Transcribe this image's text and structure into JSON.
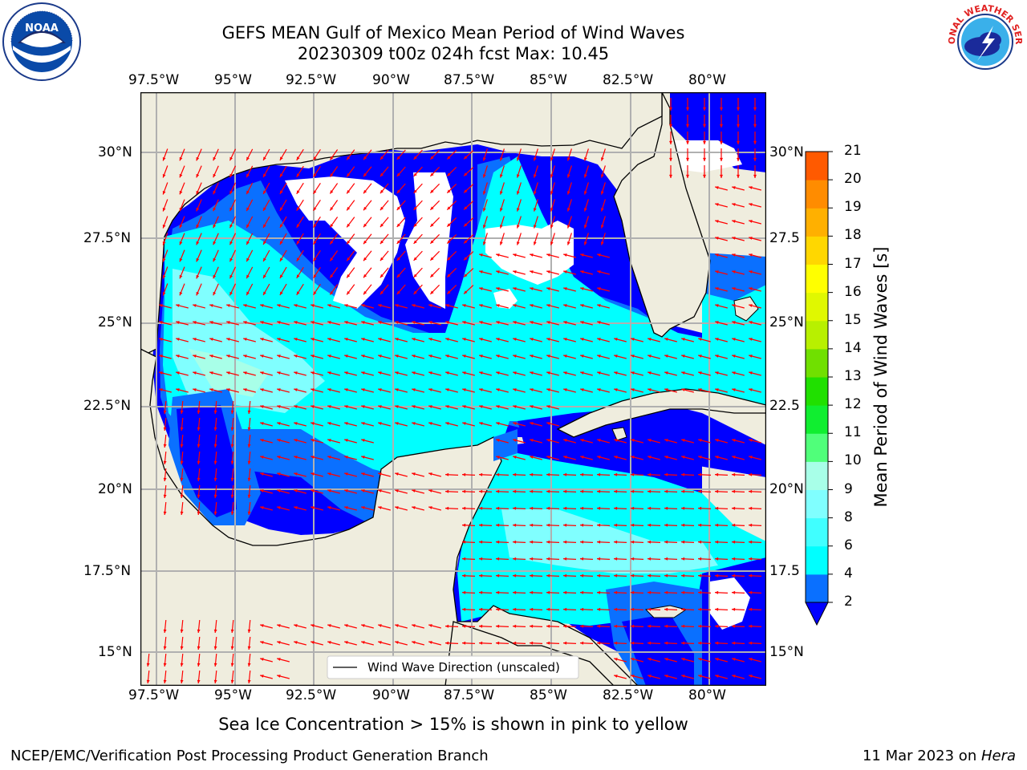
{
  "header": {
    "title_line1": "GEFS MEAN Gulf of Mexico Mean Period of Wind Waves",
    "title_line2": "20230309 t00z 024h fcst   Max: 10.45"
  },
  "map": {
    "lon_ticks": [
      "97.5°W",
      "95°W",
      "92.5°W",
      "90°W",
      "87.5°W",
      "85°W",
      "82.5°W",
      "80°W"
    ],
    "lat_ticks_left": [
      "30°N",
      "27.5°N",
      "25°N",
      "22.5°N",
      "20°N",
      "17.5°N",
      "15°N"
    ],
    "lat_ticks_right": [
      "30°N",
      "27.5",
      "25°N",
      "22.5",
      "20°N",
      "17.5",
      "15°N"
    ],
    "legend_label": "Wind Wave Direction (unscaled)",
    "land_color": "#efedde",
    "arrow_color": "#ff0000"
  },
  "colorbar": {
    "title": "Mean Period of Wind Waves [s]",
    "ticks": [
      "2",
      "4",
      "6",
      "8",
      "9",
      "10",
      "11",
      "12",
      "13",
      "14",
      "15",
      "16",
      "17",
      "18",
      "19",
      "20",
      "21"
    ],
    "colors": [
      "#0a70ff",
      "#00ffff",
      "#40ffff",
      "#80ffff",
      "#a8ffe8",
      "#50ff7a",
      "#10ee30",
      "#20e000",
      "#70e000",
      "#b8f000",
      "#e0f800",
      "#ffff00",
      "#ffd700",
      "#ffb000",
      "#ff8c00",
      "#ff5a00",
      "#ff2a00",
      "#ff0000"
    ],
    "under_color": "#0000ff"
  },
  "footer": {
    "sea_ice_note": "Sea Ice Concentration > 15% is shown in pink to yellow",
    "left_credit": "NCEP/EMC/Verification Post Processing Product Generation Branch",
    "date": "11 Mar 2023 on ",
    "machine": "Hera"
  },
  "logos": {
    "noaa_text": "NOAA",
    "nws_text": "NATIONAL WEATHER SERVICE"
  }
}
